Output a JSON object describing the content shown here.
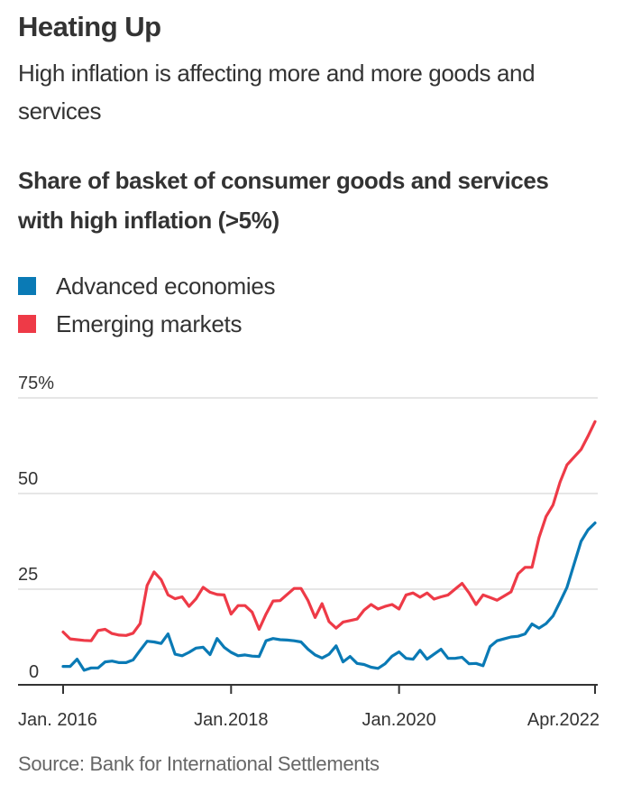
{
  "header": {
    "title": "Heating Up",
    "subtitle": "High inflation is affecting more and more goods and services"
  },
  "footer": {
    "source": "Source: Bank for International Settlements"
  },
  "colors": {
    "advanced": "#0a7ab5",
    "emerging": "#ee3a47",
    "grid": "#e6e6e6",
    "axis": "#333333"
  },
  "chart_data": {
    "type": "line",
    "title": "Share of basket of consumer goods and services with high inflation (>5%)",
    "xlabel": "",
    "ylabel": "",
    "x_start": "Jan. 2016",
    "x_end": "Apr. 2022",
    "x_unit": "monthly",
    "ylim": [
      0,
      75
    ],
    "grid": true,
    "legend_position": "top-left",
    "yticks": [
      {
        "value": 0,
        "label": "0"
      },
      {
        "value": 25,
        "label": "25"
      },
      {
        "value": 50,
        "label": "50"
      },
      {
        "value": 75,
        "label": "75%"
      }
    ],
    "xticks": [
      {
        "month_index": 0,
        "label": "Jan. 2016"
      },
      {
        "month_index": 24,
        "label": "Jan.2018"
      },
      {
        "month_index": 48,
        "label": "Jan.2020"
      },
      {
        "month_index": 76,
        "label": "Apr.2022"
      }
    ],
    "series": [
      {
        "name": "Advanced economies",
        "color": "#0a7ab5",
        "values": [
          4.8,
          4.8,
          6.7,
          3.8,
          4.4,
          4.4,
          6.0,
          6.2,
          5.8,
          5.8,
          6.5,
          9.0,
          11.4,
          11.2,
          10.8,
          13.3,
          8.0,
          7.6,
          8.5,
          9.6,
          9.8,
          7.9,
          12.1,
          9.8,
          8.5,
          7.6,
          7.8,
          7.5,
          7.4,
          11.5,
          12.1,
          11.8,
          11.7,
          11.5,
          11.2,
          9.3,
          7.8,
          7.0,
          8.0,
          10.2,
          6.0,
          7.4,
          5.6,
          5.3,
          4.6,
          4.3,
          5.5,
          7.5,
          8.6,
          6.9,
          6.7,
          9.0,
          6.7,
          8.0,
          9.3,
          6.9,
          6.9,
          7.2,
          5.5,
          5.6,
          5.0,
          10.0,
          11.5,
          12.0,
          12.5,
          12.7,
          13.3,
          15.9,
          14.8,
          16.0,
          18.0,
          21.7,
          25.5,
          31.5,
          37.5,
          40.5,
          42.3
        ]
      },
      {
        "name": "Emerging markets",
        "color": "#ee3a47",
        "values": [
          13.8,
          12.0,
          11.8,
          11.6,
          11.5,
          14.2,
          14.5,
          13.4,
          13.0,
          12.9,
          13.5,
          16.0,
          26.0,
          29.5,
          27.5,
          23.5,
          22.5,
          23.0,
          20.5,
          22.5,
          25.5,
          24.2,
          23.6,
          23.5,
          18.5,
          20.7,
          20.7,
          19.0,
          14.5,
          18.5,
          21.9,
          22.0,
          23.6,
          25.2,
          25.2,
          22.0,
          17.6,
          21.2,
          16.5,
          14.8,
          16.4,
          16.8,
          17.2,
          19.5,
          21.0,
          19.8,
          20.5,
          21.0,
          19.8,
          23.5,
          24.0,
          22.9,
          24.0,
          22.4,
          23.0,
          23.5,
          25.0,
          26.5,
          24.0,
          21.0,
          23.5,
          22.8,
          22.1,
          23.2,
          24.3,
          29.0,
          30.7,
          30.7,
          38.5,
          44.0,
          47.0,
          53.0,
          57.5,
          59.5,
          61.5,
          65.0,
          68.8
        ]
      }
    ]
  }
}
